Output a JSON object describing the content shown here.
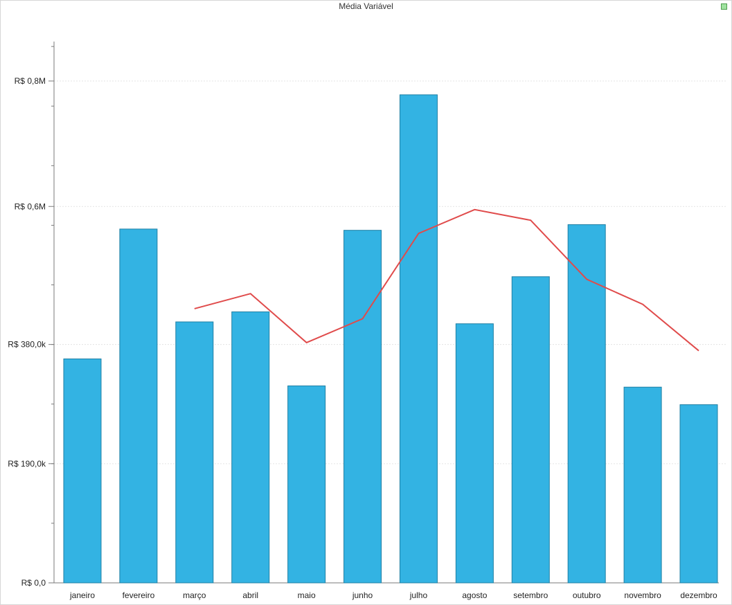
{
  "chart_data": {
    "type": "bar",
    "title": "Média Variável",
    "categories": [
      "janeiro",
      "fevereiro",
      "março",
      "abril",
      "maio",
      "junho",
      "julho",
      "agosto",
      "setembro",
      "outubro",
      "novembro",
      "dezembro"
    ],
    "series": [
      {
        "type": "bar",
        "values": [
          357000,
          564000,
          416000,
          432000,
          314000,
          562000,
          778000,
          413000,
          488000,
          571000,
          312000,
          284000
        ],
        "color": "#33b3e3"
      },
      {
        "type": "line",
        "values": [
          null,
          null,
          437000,
          461000,
          383000,
          421000,
          557000,
          595000,
          578000,
          484000,
          444000,
          370000
        ],
        "color": "#e04b4b"
      }
    ],
    "y_ticks": [
      {
        "value": 0,
        "label": "R$ 0,0"
      },
      {
        "value": 190000,
        "label": "R$ 190,0k"
      },
      {
        "value": 380000,
        "label": "R$ 380,0k"
      },
      {
        "value": 600000,
        "label": "R$ 0,6M"
      },
      {
        "value": 800000,
        "label": "R$ 0,8M"
      }
    ],
    "ylim": [
      0,
      860000
    ],
    "grid": true,
    "legend": "none"
  }
}
